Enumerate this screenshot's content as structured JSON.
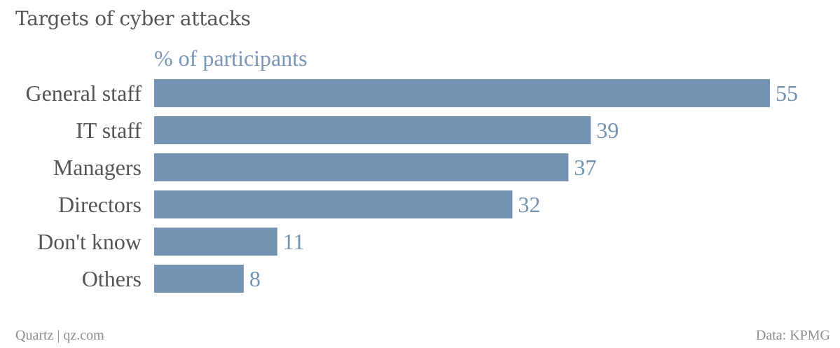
{
  "title": "Targets of cyber attacks",
  "footer": {
    "source_left": "Quartz | qz.com",
    "source_right": "Data: KPMG"
  },
  "chart_data": {
    "type": "bar",
    "orientation": "horizontal",
    "value_axis_label": "% of participants",
    "categories": [
      "General staff",
      "IT staff",
      "Managers",
      "Directors",
      "Don't know",
      "Others"
    ],
    "values": [
      55,
      39,
      37,
      32,
      11,
      8
    ],
    "xlim": [
      0,
      55
    ],
    "grid": false,
    "data_labels": true,
    "colors": {
      "bar": "#7393b3",
      "value_label": "#7393b3",
      "category_label": "#555555",
      "axis_label": "#7a97b8"
    }
  }
}
